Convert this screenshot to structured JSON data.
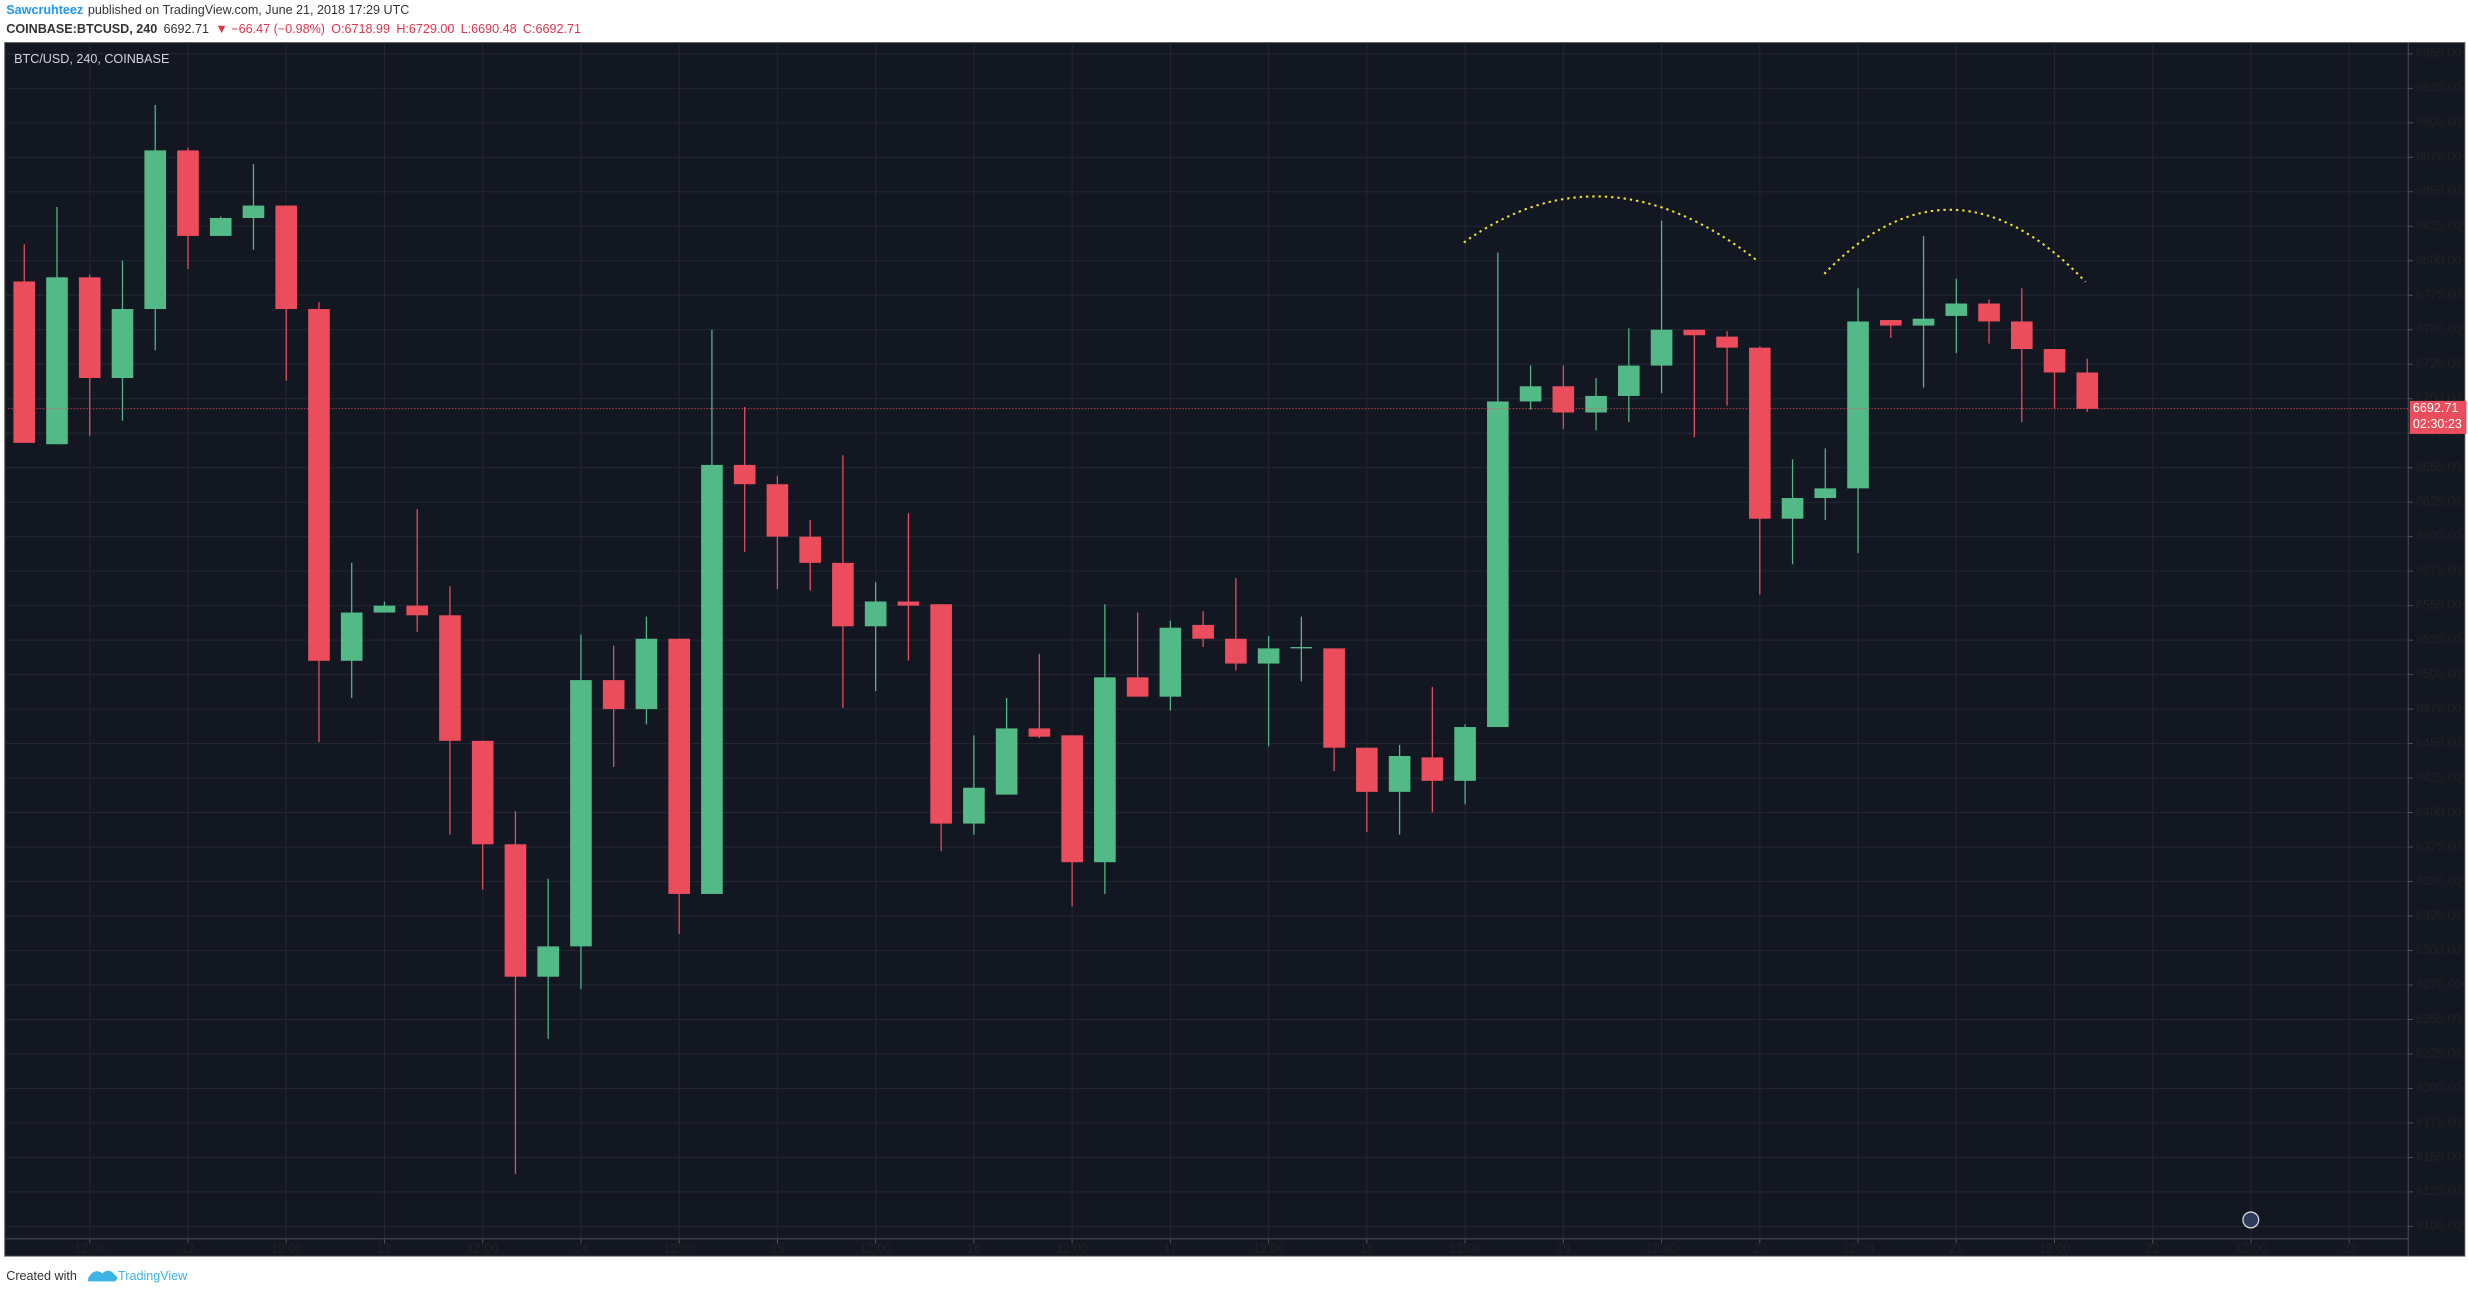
{
  "header": {
    "author": "Sawcruhteez",
    "published": "published on TradingView.com, June 21, 2018 17:29 UTC",
    "symbol": "COINBASE:BTCUSD, 240",
    "last": "6692.71",
    "change": "▼ −66.47 (−0.98%)",
    "open": "O:6718.99",
    "high": "H:6729.00",
    "low": "L:6690.48",
    "close": "C:6692.71"
  },
  "footer": {
    "created": "Created with",
    "brand": "TradingView"
  },
  "chart_data": {
    "type": "candlestick",
    "title": "BTC/USD, 240, COINBASE",
    "up_color": "#53b987",
    "down_color": "#eb4d5c",
    "grid": true,
    "countdown": "02:30:23",
    "x": [
      0,
      1,
      2,
      3,
      4,
      5,
      6,
      7,
      8,
      9,
      10,
      11,
      12,
      13,
      14,
      15,
      16,
      17,
      18,
      19,
      20,
      21,
      22,
      23,
      24,
      25,
      26,
      27,
      28,
      29,
      30,
      31,
      32,
      33,
      34,
      35,
      36,
      37,
      38,
      39,
      40,
      41,
      42,
      43,
      44,
      45,
      46,
      47,
      48,
      49,
      50,
      51,
      52,
      53,
      54,
      55,
      56,
      57,
      58,
      59,
      60,
      61,
      62,
      63
    ],
    "open": [
      6785,
      6667,
      6788,
      6715,
      6765,
      6880,
      6818,
      6831,
      6840,
      6765,
      6510,
      6545,
      6550,
      6543,
      6452,
      6377,
      6281,
      6303,
      6496,
      6475,
      6526,
      6341,
      6652,
      6638,
      6600,
      6581,
      6535,
      6553,
      6551,
      6392,
      6413,
      6461,
      6456,
      6364,
      6498,
      6484,
      6536,
      6526,
      6508,
      6519,
      6519,
      6447,
      6415,
      6440,
      6423,
      6462,
      6698,
      6709,
      6690,
      6702,
      6724,
      6750,
      6745,
      6737,
      6613,
      6628,
      6635,
      6757,
      6753,
      6760,
      6769,
      6756,
      6736,
      6718.99
    ],
    "high": [
      6812,
      6839,
      6790,
      6800,
      6913,
      6882,
      6832,
      6870,
      6840,
      6770,
      6581,
      6553,
      6620,
      6564,
      6452,
      6401,
      6352,
      6529,
      6521,
      6542,
      6526,
      6750,
      6694,
      6644,
      6612,
      6659,
      6567,
      6617,
      6551,
      6456,
      6483,
      6515,
      6456,
      6551,
      6545,
      6539,
      6546,
      6570,
      6528,
      6542,
      6519,
      6447,
      6449,
      6491,
      6464,
      6806,
      6724,
      6724,
      6715,
      6751,
      6829,
      6750,
      6749,
      6738,
      6656,
      6664,
      6780,
      6757,
      6818,
      6787,
      6772,
      6780,
      6736,
      6729.0
    ],
    "low": [
      6668,
      6667,
      6673,
      6684,
      6735,
      6794,
      6818,
      6808,
      6713,
      6451,
      6483,
      6546,
      6531,
      6384,
      6344,
      6138,
      6236,
      6272,
      6433,
      6464,
      6312,
      6341,
      6589,
      6562,
      6561,
      6476,
      6488,
      6510,
      6372,
      6384,
      6413,
      6454,
      6332,
      6341,
      6484,
      6474,
      6520,
      6503,
      6448,
      6495,
      6430,
      6386,
      6384,
      6400,
      6406,
      6462,
      6692,
      6678,
      6677,
      6683,
      6704,
      6672,
      6695,
      6558,
      6580,
      6612,
      6588,
      6744,
      6708,
      6733,
      6740,
      6683,
      6693,
      6690.48
    ],
    "close": [
      6668,
      6788,
      6715,
      6765,
      6880,
      6818,
      6831,
      6840,
      6765,
      6510,
      6545,
      6550,
      6543,
      6452,
      6377,
      6281,
      6303,
      6496,
      6475,
      6526,
      6341,
      6652,
      6638,
      6600,
      6581,
      6535,
      6553,
      6550,
      6392,
      6418,
      6461,
      6455,
      6364,
      6498,
      6484,
      6534,
      6526,
      6508,
      6519,
      6520,
      6447,
      6415,
      6441,
      6423,
      6462,
      6698,
      6709,
      6690,
      6702,
      6724,
      6750,
      6746,
      6737,
      6613,
      6628,
      6635,
      6756,
      6753,
      6758,
      6769,
      6756,
      6736,
      6719,
      6692.71
    ],
    "xlim": [
      -0.5,
      72.8
    ],
    "ylim": [
      6091,
      6957
    ],
    "xticks": [
      {
        "value": 2,
        "label": "12:00"
      },
      {
        "value": 5,
        "label": "12"
      },
      {
        "value": 8,
        "label": "12:00"
      },
      {
        "value": 11,
        "label": "13"
      },
      {
        "value": 14,
        "label": "12:00"
      },
      {
        "value": 17,
        "label": "14"
      },
      {
        "value": 20,
        "label": "12:00"
      },
      {
        "value": 23,
        "label": "15"
      },
      {
        "value": 26,
        "label": "12:00"
      },
      {
        "value": 29,
        "label": "16"
      },
      {
        "value": 32,
        "label": "12:00"
      },
      {
        "value": 35,
        "label": "17"
      },
      {
        "value": 38,
        "label": "12:00"
      },
      {
        "value": 41,
        "label": "18"
      },
      {
        "value": 44,
        "label": "12:00"
      },
      {
        "value": 47,
        "label": "19"
      },
      {
        "value": 50,
        "label": "12:00"
      },
      {
        "value": 53,
        "label": "20"
      },
      {
        "value": 56,
        "label": "12:00"
      },
      {
        "value": 59,
        "label": "21"
      },
      {
        "value": 62,
        "label": "12:00"
      },
      {
        "value": 65,
        "label": "22"
      },
      {
        "value": 68,
        "label": "12:00"
      },
      {
        "value": 71,
        "label": "23"
      }
    ],
    "yticks": [
      {
        "value": 6100,
        "label": "6100.00"
      },
      {
        "value": 6125,
        "label": "6125.00"
      },
      {
        "value": 6150,
        "label": "6150.00"
      },
      {
        "value": 6175,
        "label": "6175.00"
      },
      {
        "value": 6200,
        "label": "6200.00"
      },
      {
        "value": 6225,
        "label": "6225.00"
      },
      {
        "value": 6250,
        "label": "6250.00"
      },
      {
        "value": 6275,
        "label": "6275.00"
      },
      {
        "value": 6300,
        "label": "6300.00"
      },
      {
        "value": 6325,
        "label": "6325.00"
      },
      {
        "value": 6350,
        "label": "6350.00"
      },
      {
        "value": 6375,
        "label": "6375.00"
      },
      {
        "value": 6400,
        "label": "6400.00"
      },
      {
        "value": 6425,
        "label": "6425.00"
      },
      {
        "value": 6450,
        "label": "6450.00"
      },
      {
        "value": 6475,
        "label": "6475.00"
      },
      {
        "value": 6500,
        "label": "6500.00"
      },
      {
        "value": 6525,
        "label": "6525.00"
      },
      {
        "value": 6550,
        "label": "6550.00"
      },
      {
        "value": 6575,
        "label": "6575.00"
      },
      {
        "value": 6600,
        "label": "6600.00"
      },
      {
        "value": 6625,
        "label": "6625.00"
      },
      {
        "value": 6650,
        "label": "6650.00"
      },
      {
        "value": 6675,
        "label": "6675.00"
      },
      {
        "value": 6700,
        "label": "6700.00"
      },
      {
        "value": 6725,
        "label": "6725.00"
      },
      {
        "value": 6750,
        "label": "6750.00"
      },
      {
        "value": 6775,
        "label": "6775.00"
      },
      {
        "value": 6800,
        "label": "6800.00"
      },
      {
        "value": 6825,
        "label": "6825.00"
      },
      {
        "value": 6850,
        "label": "6850.00"
      },
      {
        "value": 6875,
        "label": "6875.00"
      },
      {
        "value": 6900,
        "label": "6900.00"
      },
      {
        "value": 6925,
        "label": "6925.00"
      },
      {
        "value": 6950,
        "label": "6950.00"
      }
    ]
  }
}
